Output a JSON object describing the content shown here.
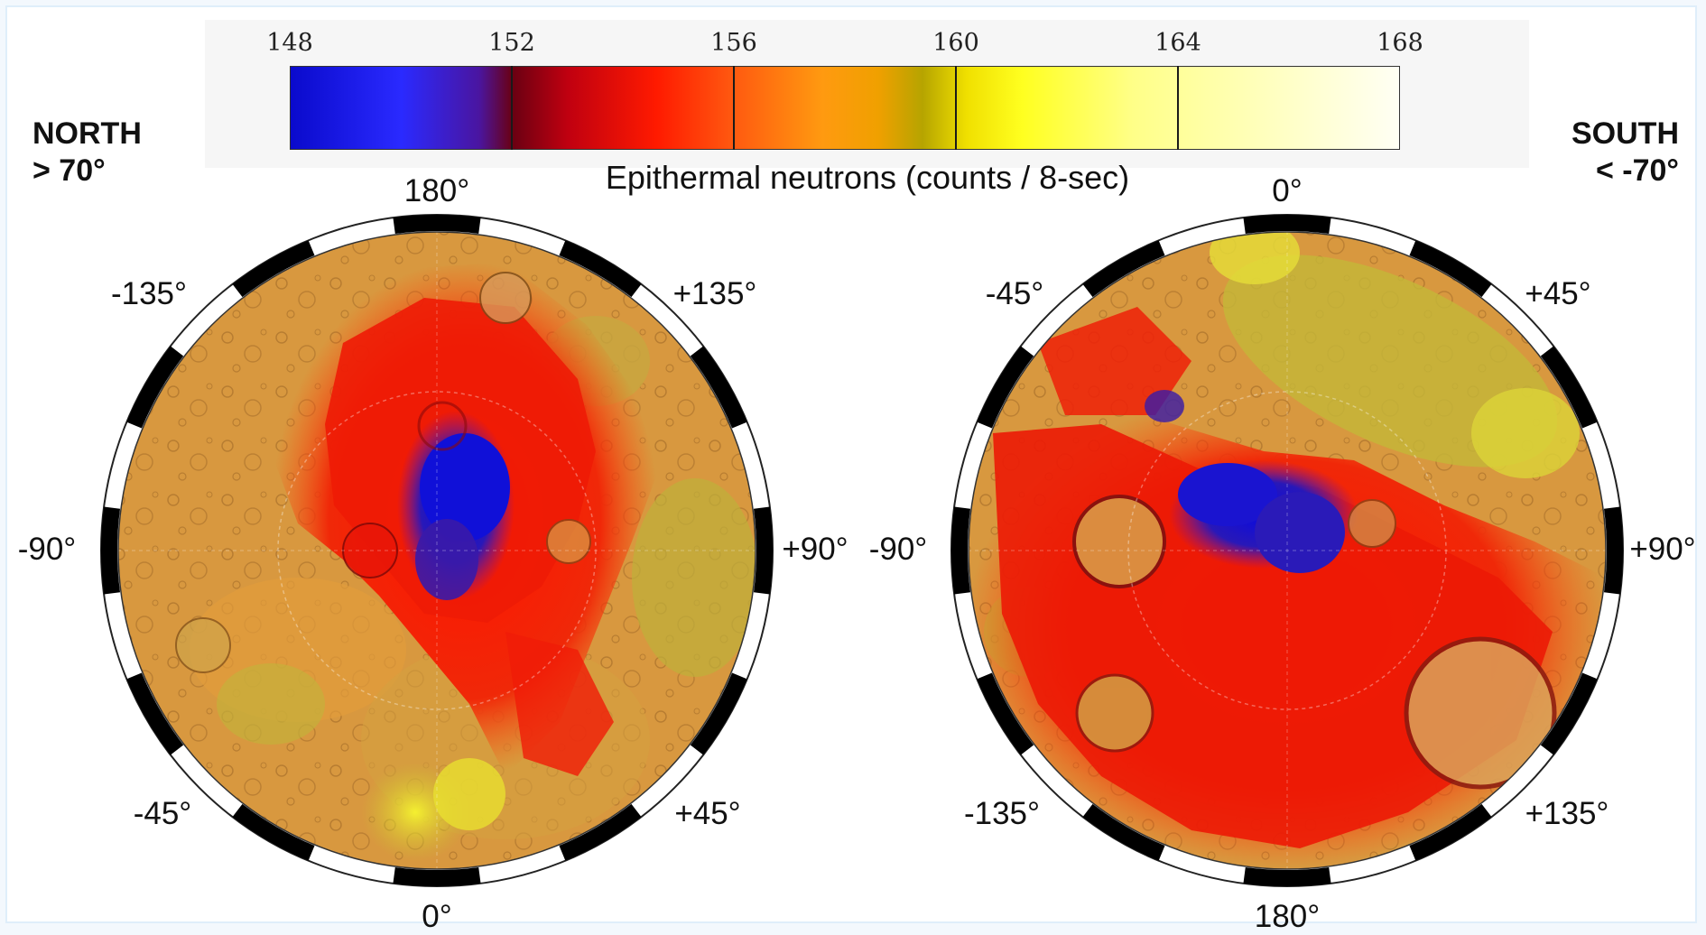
{
  "colorbar": {
    "title": "Epithermal neutrons (counts / 8-sec)",
    "ticks": [
      "148",
      "152",
      "156",
      "160",
      "164",
      "168"
    ]
  },
  "north": {
    "title_line1": "NORTH",
    "title_line2": "> 70°",
    "labels": {
      "top": "180°",
      "top_right": "+135°",
      "right": "+90°",
      "bottom_right": "+45°",
      "bottom": "0°",
      "bottom_left": "-45°",
      "left": "-90°",
      "top_left": "-135°"
    }
  },
  "south": {
    "title_line1": "SOUTH",
    "title_line2": "< -70°",
    "labels": {
      "top": "0°",
      "top_right": "+45°",
      "right": "+90°",
      "bottom_right": "+135°",
      "bottom": "180°",
      "bottom_left": "-135°",
      "left": "-90°",
      "top_left": "-45°"
    }
  },
  "colors": {
    "blue": "#0a0acc",
    "purple": "#4a15a0",
    "dark_red": "#6a0012",
    "red": "#ff1a00",
    "orange": "#ff9a10",
    "olive": "#b6a400",
    "yellow": "#ffff20",
    "pale": "#fffff4",
    "terrain": "#d99a45"
  }
}
